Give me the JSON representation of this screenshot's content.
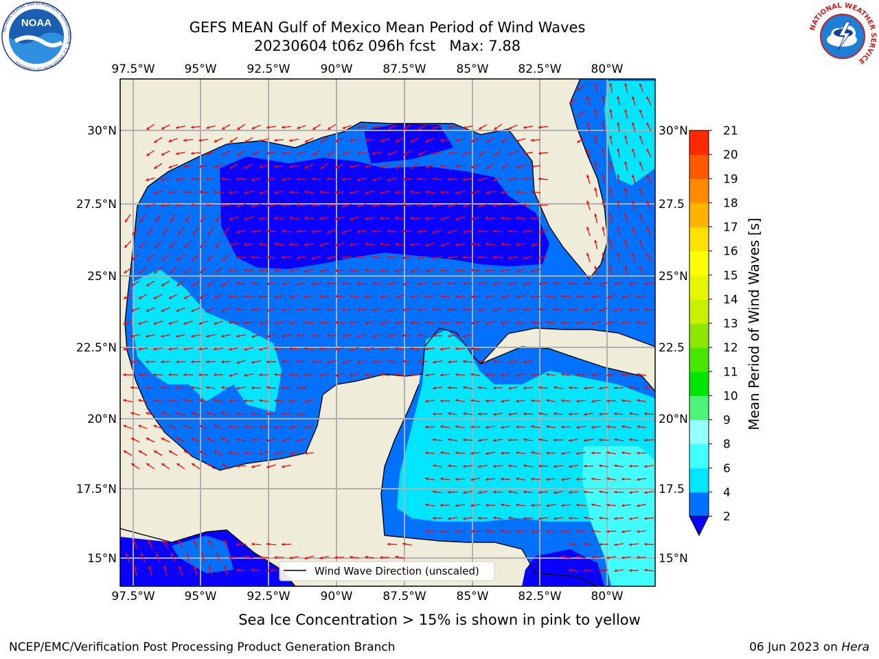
{
  "header": {
    "title_line1": "GEFS MEAN Gulf of Mexico Mean Period of Wind Waves",
    "title_line2": "20230604 t06z 096h fcst   Max: 7.88"
  },
  "logos": {
    "noaa_text": "NOAA",
    "noaa_ring_text": "NATIONAL OCEANIC AND ATMOSPHERIC ADMINISTRATION · U.S. DEPARTMENT OF COMMERCE",
    "nws_ring_text": "NATIONAL WEATHER SERVICE"
  },
  "map": {
    "lon_ticks": [
      "97.5°W",
      "95°W",
      "92.5°W",
      "90°W",
      "87.5°W",
      "85°W",
      "82.5°W",
      "80°W"
    ],
    "lat_ticks_left": [
      "30°N",
      "27.5°N",
      "25°N",
      "22.5°N",
      "20°N",
      "17.5°N",
      "15°N"
    ],
    "lat_ticks_right": [
      "30°N",
      "27.5",
      "25°N",
      "22.5",
      "20°N",
      "17.5",
      "15°N"
    ],
    "legend_label": "Wind Wave Direction (unscaled)",
    "arrow_color": "#ff0000",
    "land_color": "#efedd9",
    "grid_color": "#b0b0b0"
  },
  "colorbar": {
    "label": "Mean Period of Wind Waves [s]",
    "tick_labels": [
      "2",
      "4",
      "6",
      "8",
      "9",
      "10",
      "11",
      "12",
      "13",
      "14",
      "15",
      "16",
      "17",
      "18",
      "19",
      "20",
      "21"
    ],
    "colors": [
      "#0072ff",
      "#00e6ff",
      "#41ffff",
      "#96ffff",
      "#4cf47a",
      "#00e600",
      "#47e800",
      "#8fe600",
      "#c8f000",
      "#e6f500",
      "#ffff00",
      "#ffe100",
      "#ffb400",
      "#ff8c00",
      "#ff5a00",
      "#ff2800"
    ],
    "under_color": "#0a00ff"
  },
  "footer": {
    "caption": "Sea Ice Concentration > 15% is shown in pink to yellow",
    "left": "NCEP/EMC/Verification Post Processing Product Generation Branch",
    "right_prefix": "06 Jun 2023 on ",
    "right_host": "Hera"
  }
}
